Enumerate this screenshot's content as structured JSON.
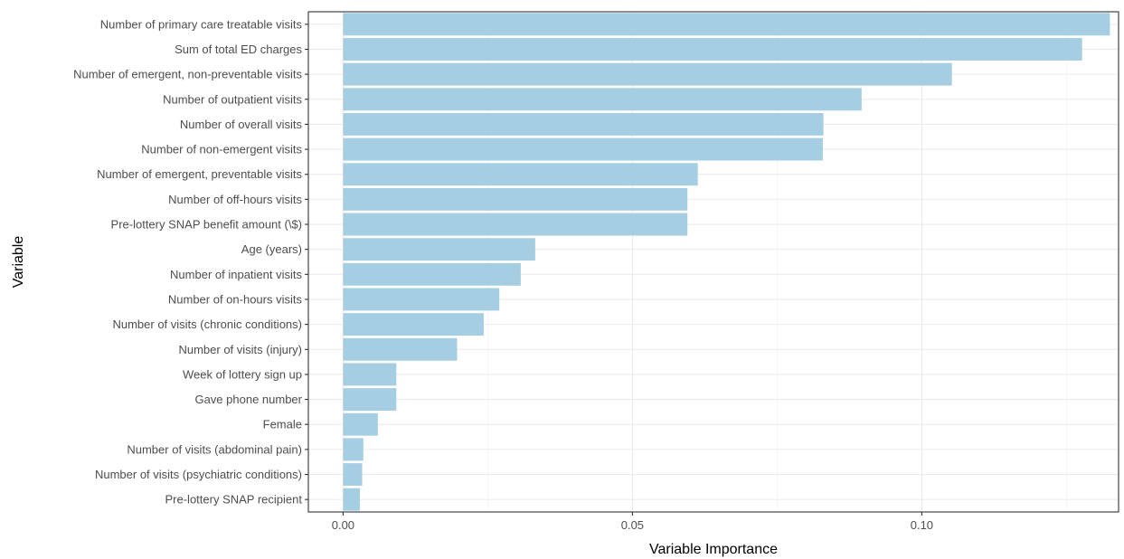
{
  "chart_data": {
    "type": "bar",
    "orientation": "horizontal",
    "title": "",
    "xlabel": "Variable Importance",
    "ylabel": "Variable",
    "xlim": [
      -0.006,
      0.134
    ],
    "x_ticks": [
      0.0,
      0.05,
      0.1
    ],
    "x_tick_labels": [
      "0.00",
      "0.05",
      "0.10"
    ],
    "grid": true,
    "bar_color": "#a6cee3",
    "categories": [
      "Number of primary care treatable visits",
      "Sum of total ED charges",
      "Number of emergent, non-preventable visits",
      "Number of outpatient visits",
      "Number of overall visits",
      "Number of non-emergent visits",
      "Number of emergent, preventable visits",
      "Number of off-hours visits",
      "Pre-lottery SNAP benefit amount (\\$)",
      "Age (years)",
      "Number of inpatient visits",
      "Number of on-hours visits",
      "Number of visits (chronic conditions)",
      "Number of visits (injury)",
      "Week of lottery sign up",
      "Gave phone number",
      "Female",
      "Number of visits (abdominal pain)",
      "Number of visits (psychiatric conditions)",
      "Pre-lottery SNAP recipient"
    ],
    "values": [
      0.1325,
      0.1277,
      0.1052,
      0.0896,
      0.083,
      0.0829,
      0.0613,
      0.0595,
      0.0595,
      0.0332,
      0.0307,
      0.027,
      0.0243,
      0.0197,
      0.0092,
      0.0092,
      0.006,
      0.0035,
      0.0033,
      0.0029
    ]
  }
}
